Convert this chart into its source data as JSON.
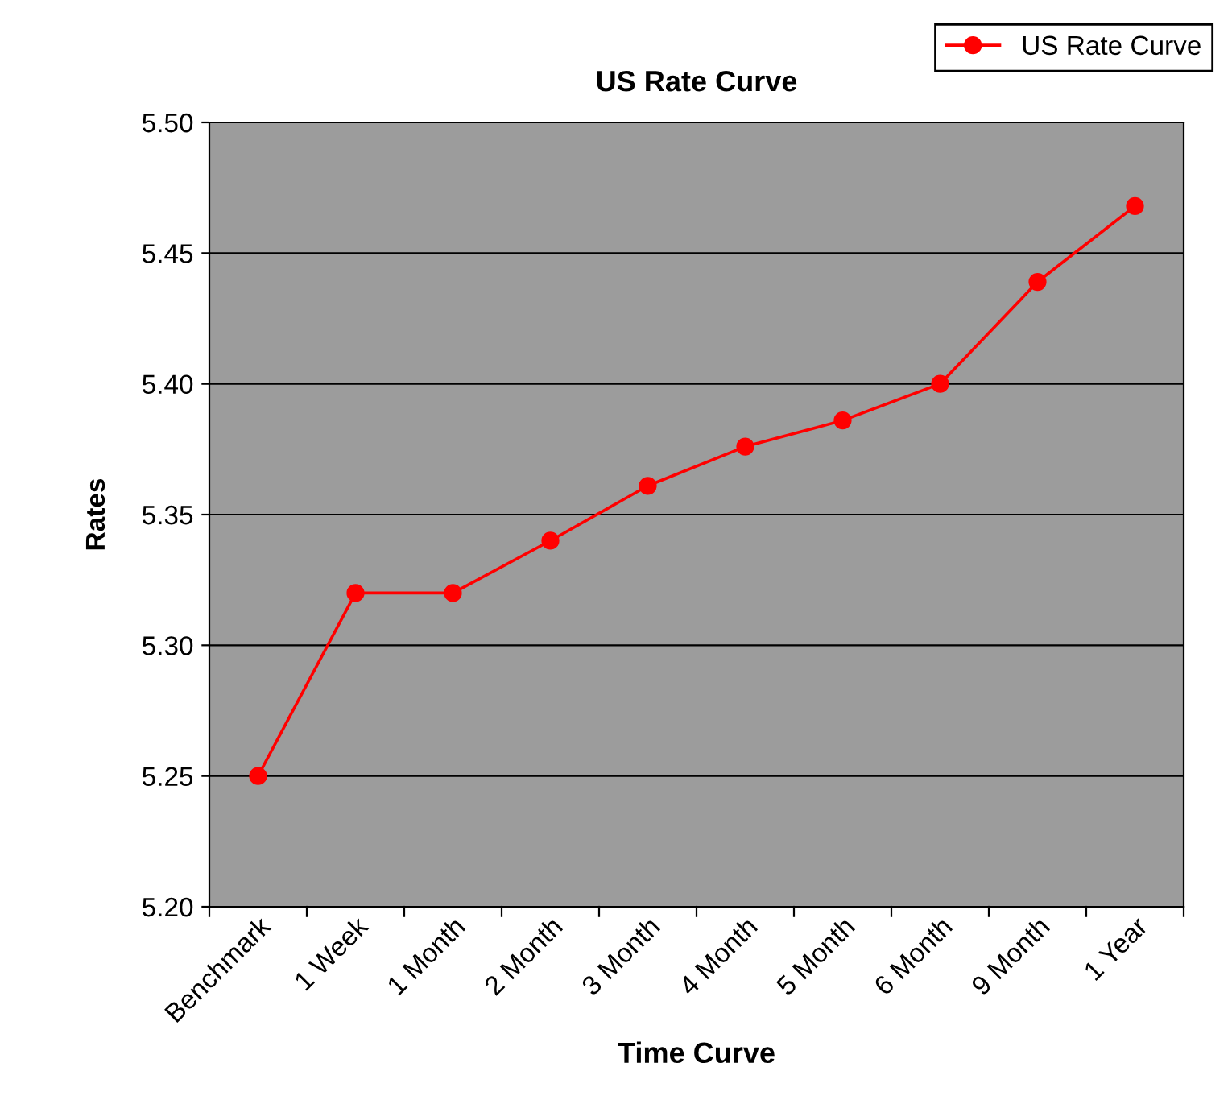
{
  "chart_data": {
    "type": "line",
    "title": "US Rate Curve",
    "xlabel": "Time Curve",
    "ylabel": "Rates",
    "categories": [
      "Benchmark",
      "1 Week",
      "1 Month",
      "2 Month",
      "3 Month",
      "4 Month",
      "5 Month",
      "6 Month",
      "9 Month",
      "1 Year"
    ],
    "series": [
      {
        "name": "US Rate Curve",
        "color": "#ff0000",
        "values": [
          5.25,
          5.32,
          5.32,
          5.34,
          5.361,
          5.376,
          5.386,
          5.4,
          5.439,
          5.468
        ]
      }
    ],
    "ylim": [
      5.2,
      5.5
    ],
    "yticks": [
      {
        "value": 5.2,
        "label": "5.20"
      },
      {
        "value": 5.25,
        "label": "5.25"
      },
      {
        "value": 5.3,
        "label": "5.30"
      },
      {
        "value": 5.35,
        "label": "5.35"
      },
      {
        "value": 5.4,
        "label": "5.40"
      },
      {
        "value": 5.45,
        "label": "5.45"
      },
      {
        "value": 5.5,
        "label": "5.50"
      }
    ],
    "grid": "y",
    "legend": "top right",
    "marker": "circle",
    "line_style": "solid"
  }
}
